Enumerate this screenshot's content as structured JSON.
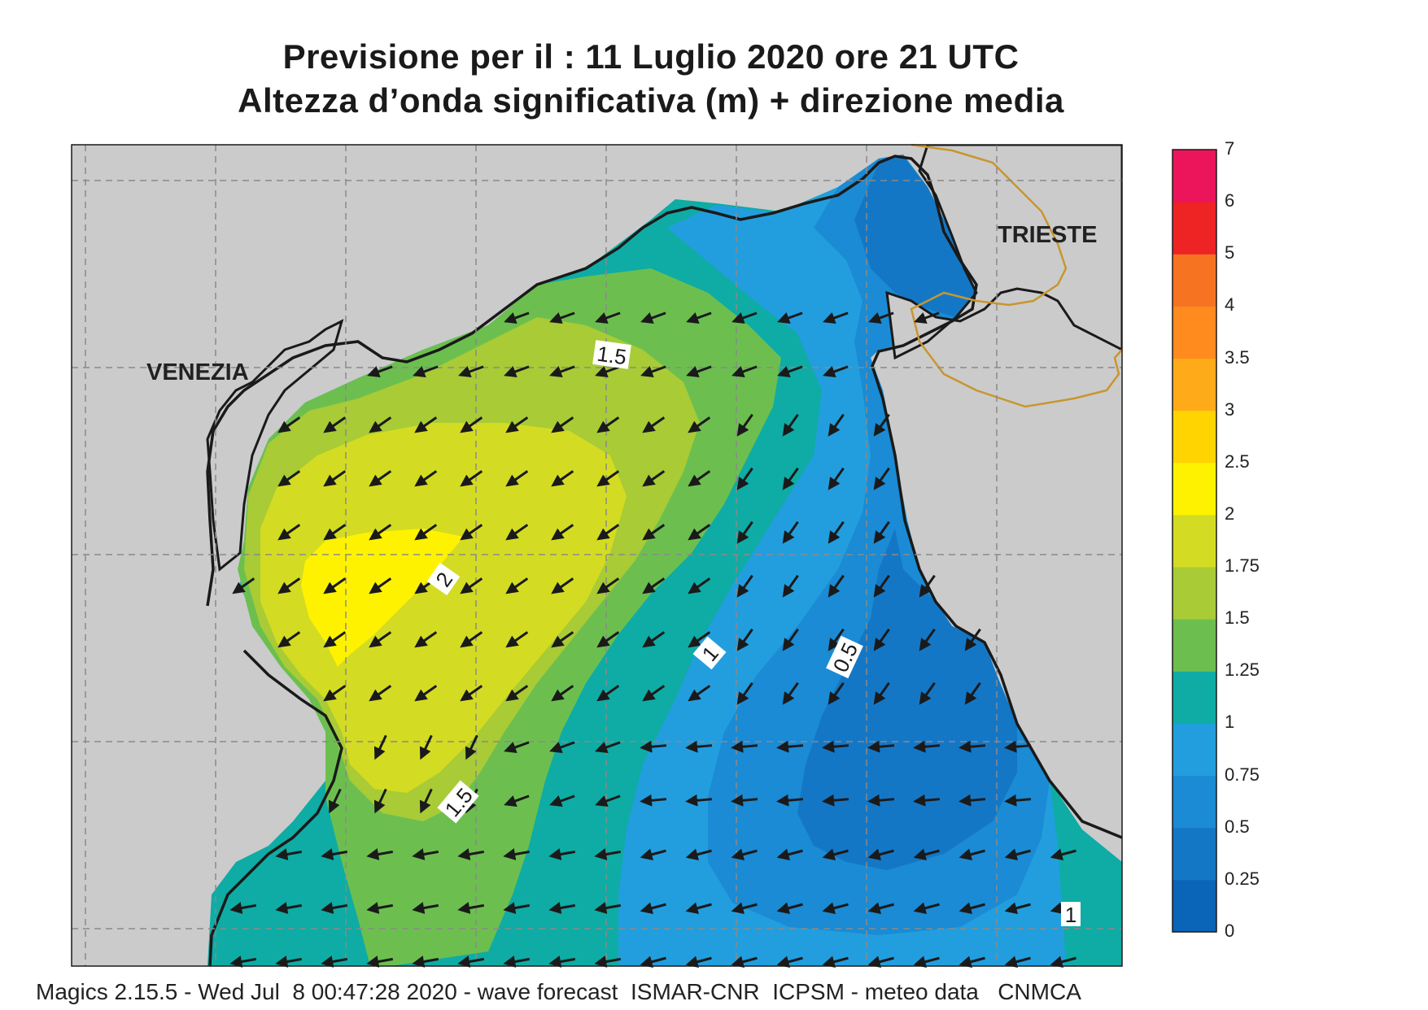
{
  "title": {
    "line1": "Previsione per il  :  11  Luglio   2020   ore 21 UTC",
    "line2": "Altezza d’onda significativa (m) + direzione media"
  },
  "cities": {
    "venezia": "VENEZIA",
    "trieste": "TRIESTE"
  },
  "contour_labels": [
    {
      "text": "1.5"
    },
    {
      "text": "2"
    },
    {
      "text": "1"
    },
    {
      "text": "0.5"
    },
    {
      "text": "1.5"
    },
    {
      "text": "1"
    }
  ],
  "legend": {
    "ticks": [
      "0",
      "0.25",
      "0.5",
      "0.75",
      "1",
      "1.25",
      "1.5",
      "1.75",
      "2",
      "2.5",
      "3",
      "3.5",
      "4",
      "5",
      "6",
      "7"
    ],
    "colors": [
      "#0a64b8",
      "#1477c6",
      "#1a8bd4",
      "#229edf",
      "#0eaca5",
      "#6cbf4f",
      "#a8cb36",
      "#d3dc22",
      "#fff200",
      "#ffd400",
      "#ffaa18",
      "#ff8a1e",
      "#f67421",
      "#ee2324",
      "#ec145a"
    ]
  },
  "colors": {
    "land": "#cbcbcb",
    "coast": "#1a1a1a",
    "border": "#c8962e",
    "grid": "#8a8a8a",
    "arrow": "#1a1a1a"
  },
  "footer": "Magics 2.15.5 - Wed Jul  8 00:47:28 2020 - wave forecast  ISMAR-CNR  ICPSM - meteo data   CNMCA"
}
